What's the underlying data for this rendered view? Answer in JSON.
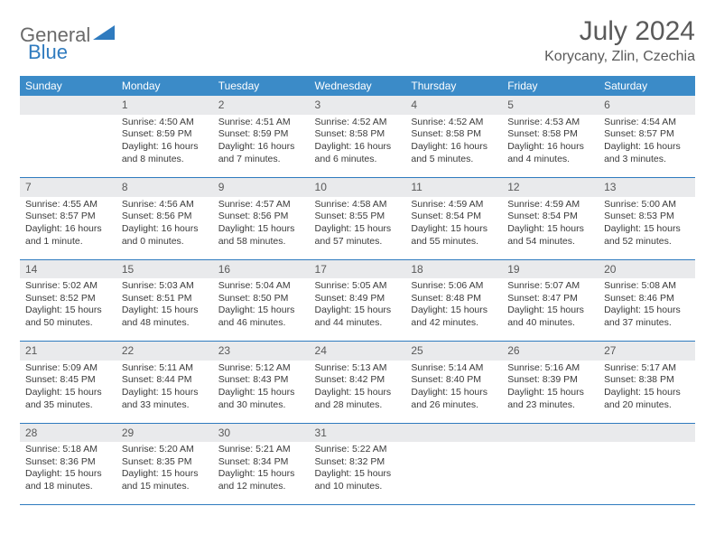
{
  "brand": {
    "part1": "General",
    "part2": "Blue"
  },
  "title": "July 2024",
  "location": "Korycany, Zlin, Czechia",
  "colors": {
    "header_bg": "#3b8bc8",
    "header_text": "#ffffff",
    "daynum_bg": "#e9eaec",
    "daynum_text": "#595959",
    "body_text": "#3a3a3a",
    "divider": "#2f7bbf",
    "logo_gray": "#6a6a6a",
    "logo_blue": "#2f7bbf",
    "page_bg": "#ffffff"
  },
  "day_headers": [
    "Sunday",
    "Monday",
    "Tuesday",
    "Wednesday",
    "Thursday",
    "Friday",
    "Saturday"
  ],
  "days": {
    "1": {
      "sunrise": "4:50 AM",
      "sunset": "8:59 PM",
      "daylight": "16 hours and 8 minutes."
    },
    "2": {
      "sunrise": "4:51 AM",
      "sunset": "8:59 PM",
      "daylight": "16 hours and 7 minutes."
    },
    "3": {
      "sunrise": "4:52 AM",
      "sunset": "8:58 PM",
      "daylight": "16 hours and 6 minutes."
    },
    "4": {
      "sunrise": "4:52 AM",
      "sunset": "8:58 PM",
      "daylight": "16 hours and 5 minutes."
    },
    "5": {
      "sunrise": "4:53 AM",
      "sunset": "8:58 PM",
      "daylight": "16 hours and 4 minutes."
    },
    "6": {
      "sunrise": "4:54 AM",
      "sunset": "8:57 PM",
      "daylight": "16 hours and 3 minutes."
    },
    "7": {
      "sunrise": "4:55 AM",
      "sunset": "8:57 PM",
      "daylight": "16 hours and 1 minute."
    },
    "8": {
      "sunrise": "4:56 AM",
      "sunset": "8:56 PM",
      "daylight": "16 hours and 0 minutes."
    },
    "9": {
      "sunrise": "4:57 AM",
      "sunset": "8:56 PM",
      "daylight": "15 hours and 58 minutes."
    },
    "10": {
      "sunrise": "4:58 AM",
      "sunset": "8:55 PM",
      "daylight": "15 hours and 57 minutes."
    },
    "11": {
      "sunrise": "4:59 AM",
      "sunset": "8:54 PM",
      "daylight": "15 hours and 55 minutes."
    },
    "12": {
      "sunrise": "4:59 AM",
      "sunset": "8:54 PM",
      "daylight": "15 hours and 54 minutes."
    },
    "13": {
      "sunrise": "5:00 AM",
      "sunset": "8:53 PM",
      "daylight": "15 hours and 52 minutes."
    },
    "14": {
      "sunrise": "5:02 AM",
      "sunset": "8:52 PM",
      "daylight": "15 hours and 50 minutes."
    },
    "15": {
      "sunrise": "5:03 AM",
      "sunset": "8:51 PM",
      "daylight": "15 hours and 48 minutes."
    },
    "16": {
      "sunrise": "5:04 AM",
      "sunset": "8:50 PM",
      "daylight": "15 hours and 46 minutes."
    },
    "17": {
      "sunrise": "5:05 AM",
      "sunset": "8:49 PM",
      "daylight": "15 hours and 44 minutes."
    },
    "18": {
      "sunrise": "5:06 AM",
      "sunset": "8:48 PM",
      "daylight": "15 hours and 42 minutes."
    },
    "19": {
      "sunrise": "5:07 AM",
      "sunset": "8:47 PM",
      "daylight": "15 hours and 40 minutes."
    },
    "20": {
      "sunrise": "5:08 AM",
      "sunset": "8:46 PM",
      "daylight": "15 hours and 37 minutes."
    },
    "21": {
      "sunrise": "5:09 AM",
      "sunset": "8:45 PM",
      "daylight": "15 hours and 35 minutes."
    },
    "22": {
      "sunrise": "5:11 AM",
      "sunset": "8:44 PM",
      "daylight": "15 hours and 33 minutes."
    },
    "23": {
      "sunrise": "5:12 AM",
      "sunset": "8:43 PM",
      "daylight": "15 hours and 30 minutes."
    },
    "24": {
      "sunrise": "5:13 AM",
      "sunset": "8:42 PM",
      "daylight": "15 hours and 28 minutes."
    },
    "25": {
      "sunrise": "5:14 AM",
      "sunset": "8:40 PM",
      "daylight": "15 hours and 26 minutes."
    },
    "26": {
      "sunrise": "5:16 AM",
      "sunset": "8:39 PM",
      "daylight": "15 hours and 23 minutes."
    },
    "27": {
      "sunrise": "5:17 AM",
      "sunset": "8:38 PM",
      "daylight": "15 hours and 20 minutes."
    },
    "28": {
      "sunrise": "5:18 AM",
      "sunset": "8:36 PM",
      "daylight": "15 hours and 18 minutes."
    },
    "29": {
      "sunrise": "5:20 AM",
      "sunset": "8:35 PM",
      "daylight": "15 hours and 15 minutes."
    },
    "30": {
      "sunrise": "5:21 AM",
      "sunset": "8:34 PM",
      "daylight": "15 hours and 12 minutes."
    },
    "31": {
      "sunrise": "5:22 AM",
      "sunset": "8:32 PM",
      "daylight": "15 hours and 10 minutes."
    }
  },
  "labels": {
    "sunrise": "Sunrise:",
    "sunset": "Sunset:",
    "daylight": "Daylight:"
  },
  "layout": {
    "weeks": [
      [
        null,
        "1",
        "2",
        "3",
        "4",
        "5",
        "6"
      ],
      [
        "7",
        "8",
        "9",
        "10",
        "11",
        "12",
        "13"
      ],
      [
        "14",
        "15",
        "16",
        "17",
        "18",
        "19",
        "20"
      ],
      [
        "21",
        "22",
        "23",
        "24",
        "25",
        "26",
        "27"
      ],
      [
        "28",
        "29",
        "30",
        "31",
        null,
        null,
        null
      ]
    ]
  }
}
